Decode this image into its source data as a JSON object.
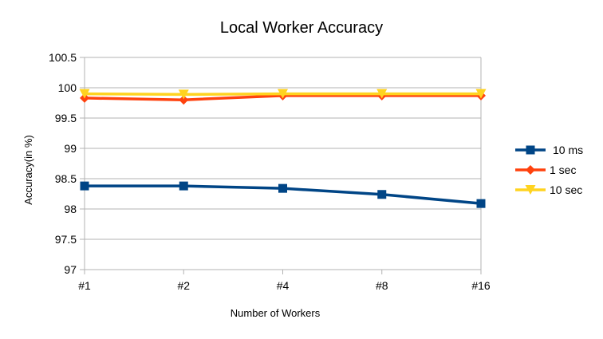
{
  "chart_data": {
    "type": "line",
    "title": "Local Worker Accuracy",
    "xlabel": "Number of Workers",
    "ylabel": "Accuracy(in %)",
    "categories": [
      "#1",
      "#2",
      "#4",
      "#8",
      "#16"
    ],
    "ylim": [
      97,
      100.5
    ],
    "yticks": [
      "97",
      "97.5",
      "98",
      "98.5",
      "99",
      "99.5",
      "100",
      "100.5"
    ],
    "grid": true,
    "legend_position": "right",
    "series": [
      {
        "name": "10 ms",
        "values": [
          98.38,
          98.38,
          98.34,
          98.24,
          98.09
        ],
        "color": "#004586",
        "marker": "square"
      },
      {
        "name": "1 sec",
        "values": [
          99.83,
          99.8,
          99.87,
          99.87,
          99.87
        ],
        "color": "#ff420e",
        "marker": "diamond"
      },
      {
        "name": "10 sec",
        "values": [
          99.9,
          99.89,
          99.9,
          99.9,
          99.9
        ],
        "color": "#ffd320",
        "marker": "triangle-down"
      }
    ]
  }
}
